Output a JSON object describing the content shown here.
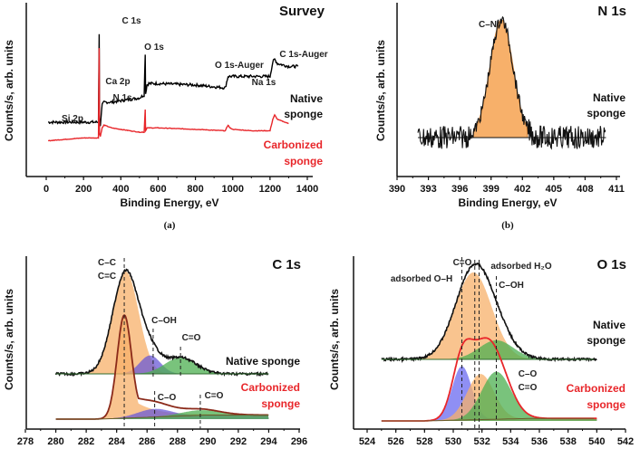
{
  "chart_data": [
    {
      "id": "survey",
      "type": "line",
      "panel_label": "(a)",
      "title": "Survey",
      "xlabel": "Binding Energy, eV",
      "ylabel": "Counts/s, arb. units",
      "xlim": [
        -100,
        1420
      ],
      "xticks": [
        0,
        200,
        400,
        600,
        800,
        1000,
        1200,
        1400
      ],
      "series": [
        {
          "name": "Native sponge",
          "color": "#000000",
          "x": [
            10,
            100,
            200,
            280,
            284,
            286,
            290,
            300,
            310,
            350,
            400,
            500,
            525,
            531,
            533,
            540,
            550,
            600,
            800,
            960,
            975,
            1000,
            1100,
            1200,
            1215,
            1225,
            1240,
            1300,
            1350
          ],
          "y": [
            0.38,
            0.38,
            0.38,
            0.38,
            1.0,
            0.4,
            0.36,
            0.5,
            0.52,
            0.52,
            0.53,
            0.55,
            0.57,
            0.86,
            0.58,
            0.64,
            0.65,
            0.65,
            0.64,
            0.62,
            0.7,
            0.7,
            0.7,
            0.7,
            0.8,
            0.82,
            0.79,
            0.77,
            0.77
          ]
        },
        {
          "name": "Carbonized sponge",
          "color": "#e8262a",
          "x": [
            10,
            100,
            200,
            280,
            284,
            286,
            290,
            300,
            310,
            350,
            400,
            500,
            525,
            531,
            533,
            540,
            550,
            600,
            800,
            960,
            975,
            985,
            1000,
            1100,
            1200,
            1215,
            1225,
            1240,
            1300
          ],
          "y": [
            0.25,
            0.26,
            0.27,
            0.27,
            0.9,
            0.3,
            0.28,
            0.34,
            0.36,
            0.34,
            0.33,
            0.31,
            0.31,
            0.47,
            0.32,
            0.34,
            0.34,
            0.34,
            0.33,
            0.32,
            0.36,
            0.34,
            0.33,
            0.32,
            0.32,
            0.4,
            0.43,
            0.4,
            0.37
          ]
        }
      ],
      "annotations": [
        {
          "text": "C 1s",
          "x": 284
        },
        {
          "text": "Ca 2p",
          "x": 347
        },
        {
          "text": "N 1s",
          "x": 400
        },
        {
          "text": "O 1s",
          "x": 531
        },
        {
          "text": "Si 2p",
          "x": 100
        },
        {
          "text": "O 1s-Auger",
          "x": 978
        },
        {
          "text": "Na 1s",
          "x": 1072
        },
        {
          "text": "C 1s-Auger",
          "x": 1225
        }
      ]
    },
    {
      "id": "n1s",
      "type": "area",
      "panel_label": "(b)",
      "title": "N 1s",
      "xlabel": "Binding Energy, eV",
      "ylabel": "Counts/s, arb. units",
      "xlim": [
        390,
        411
      ],
      "xticks": [
        390,
        393,
        396,
        399,
        402,
        405,
        408,
        411
      ],
      "series": [
        {
          "name": "Native sponge",
          "color": "#000000",
          "x_range": [
            392,
            410
          ],
          "noise": true
        },
        {
          "name": "C–N",
          "color": "#f7b06a",
          "center": 400.0,
          "fwhm": 2.6,
          "height": 1.0
        }
      ],
      "annotations": [
        {
          "text": "C–N",
          "x": 399.6
        }
      ]
    },
    {
      "id": "c1s",
      "type": "area",
      "title": "C 1s",
      "xlabel": "",
      "ylabel": "Counts/s, arb. units",
      "xlim": [
        278,
        296
      ],
      "xticks": [
        278,
        280,
        282,
        284,
        286,
        288,
        290,
        292,
        294,
        296
      ],
      "xrange_data": [
        280,
        294
      ],
      "groups": [
        {
          "name": "Native sponge",
          "legend_color": "#111111",
          "components": [
            {
              "label": "C–C / C=C",
              "center": 284.6,
              "fwhm": 2.0,
              "height": 1.0,
              "color": "#f7b06a"
            },
            {
              "label": "C–OH",
              "center": 286.2,
              "fwhm": 1.6,
              "height": 0.18,
              "color": "#6a5ad6"
            },
            {
              "label": "C=O",
              "center": 288.2,
              "fwhm": 2.4,
              "height": 0.16,
              "color": "#4caf50"
            }
          ]
        },
        {
          "name": "Carbonized sponge",
          "legend_color": "#e8262a",
          "components": [
            {
              "label": "C–C / C=C",
              "center": 284.5,
              "fwhm": 1.1,
              "height": 1.0,
              "color": "#f7b06a",
              "tail": true
            },
            {
              "label": "C–O",
              "center": 286.5,
              "fwhm": 2.6,
              "height": 0.08,
              "color": "#6a5ad6"
            },
            {
              "label": "C=O",
              "center": 289.5,
              "fwhm": 3.0,
              "height": 0.05,
              "color": "#4caf50"
            }
          ]
        }
      ],
      "dashed_lines": [
        284.5,
        286.4,
        288.2,
        286.5,
        289.5
      ],
      "annotations": [
        {
          "text": "C–C",
          "x": 283.8
        },
        {
          "text": "C=C",
          "x": 283.8
        },
        {
          "text": "C–OH",
          "x": 286.9
        },
        {
          "text": "C=O",
          "x": 288.7
        },
        {
          "text": "C–O",
          "x": 287.2
        },
        {
          "text": "C=O",
          "x": 290.5
        }
      ]
    },
    {
      "id": "o1s",
      "type": "area",
      "title": "O 1s",
      "xlabel": "",
      "ylabel": "Counts/s, arb. units",
      "xlim": [
        523,
        542
      ],
      "xticks": [
        524,
        526,
        528,
        530,
        532,
        534,
        536,
        538,
        540,
        542
      ],
      "xrange_data": [
        525,
        540
      ],
      "groups": [
        {
          "name": "Native sponge",
          "legend_color": "#111111",
          "components": [
            {
              "label": "adsorbed O–H / C=O",
              "center": 531.4,
              "fwhm": 3.0,
              "height": 1.0,
              "color": "#f7b06a"
            },
            {
              "label": "C–OH",
              "center": 533.0,
              "fwhm": 2.8,
              "height": 0.22,
              "color": "#4caf50"
            }
          ]
        },
        {
          "name": "Carbonized sponge",
          "legend_color": "#e8262a",
          "components": [
            {
              "label": "adsorbed O–H",
              "center": 530.6,
              "fwhm": 1.6,
              "height": 0.85,
              "color": "#6a6af0"
            },
            {
              "label": "adsorbed H2O",
              "center": 531.9,
              "fwhm": 2.2,
              "height": 0.72,
              "color": "#f7b06a"
            },
            {
              "label": "C–O / C=O",
              "center": 533.0,
              "fwhm": 2.4,
              "height": 0.75,
              "color": "#4caf50"
            }
          ]
        }
      ],
      "dashed_lines": [
        530.6,
        531.5,
        531.8,
        533.0
      ],
      "annotations": [
        {
          "text": "C=O",
          "x": 530.7
        },
        {
          "text": "adsorbed H₂O",
          "x": 534.0
        },
        {
          "text": "adsorbed O–H",
          "x": 528.2
        },
        {
          "text": "C–OH",
          "x": 534.3
        },
        {
          "text": "C–O",
          "x": 534.9
        },
        {
          "text": "C=O",
          "x": 534.9
        }
      ]
    }
  ],
  "labels": {
    "survey_title": "Survey",
    "n1s_title": "N 1s",
    "c1s_title": "C 1s",
    "o1s_title": "O 1s",
    "xlabel": "Binding Energy, eV",
    "ylabel": "Counts/s, arb. units",
    "panel_a": "(a)",
    "panel_b": "(b)",
    "native": "Native",
    "sponge": "sponge",
    "native_sponge": "Native sponge",
    "carbonized": "Carbonized",
    "a_ann": [
      "C 1s",
      "Ca 2p",
      "N 1s",
      "O 1s",
      "Si 2p",
      "O 1s-Auger",
      "Na 1s",
      "C 1s-Auger"
    ],
    "b_ann": [
      "C–N"
    ],
    "c_ann": [
      "C–C",
      "C=C",
      "C–OH",
      "C=O",
      "C–O",
      "C=O"
    ],
    "o_ann": [
      "C=O",
      "adsorbed H₂O",
      "adsorbed O–H",
      "C–OH",
      "C–O",
      "C=O"
    ]
  }
}
